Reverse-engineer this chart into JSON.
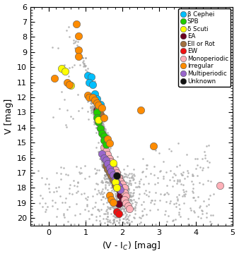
{
  "xlabel": "(V - I$_C$) [mag]",
  "ylabel": "V [mag]",
  "xlim": [
    -0.5,
    5.0
  ],
  "ylim": [
    20.5,
    6.0
  ],
  "xticks": [
    0,
    1,
    2,
    3,
    4,
    5
  ],
  "yticks": [
    6,
    7,
    8,
    9,
    10,
    11,
    12,
    13,
    14,
    15,
    16,
    17,
    18,
    19,
    20
  ],
  "legend_types": [
    {
      "label": "β Cephei",
      "color": "#00BFFF"
    },
    {
      "label": "SPB",
      "color": "#22CC00"
    },
    {
      "label": "δ Scuti",
      "color": "#FFFF00"
    },
    {
      "label": "EA",
      "color": "#6B0020"
    },
    {
      "label": "Ell or Rot",
      "color": "#A07040"
    },
    {
      "label": "EW",
      "color": "#EE1111"
    },
    {
      "label": "Monoperiodic",
      "color": "#FFB0B8"
    },
    {
      "label": "Irregular",
      "color": "#FF8C00"
    },
    {
      "label": "Multiperiodic",
      "color": "#9966CC"
    },
    {
      "label": "Unknown",
      "color": "#111111"
    }
  ],
  "bg_color": "#AAAAAA",
  "bg_size": 3.5,
  "var_size": 55,
  "var_ec": "#555555",
  "var_lw": 0.4,
  "beta_cephei": {
    "color": "#00BFFF",
    "points": [
      [
        1.05,
        10.55
      ],
      [
        1.15,
        10.65
      ],
      [
        1.1,
        11.0
      ],
      [
        1.2,
        11.15
      ],
      [
        1.25,
        11.75
      ],
      [
        1.3,
        12.1
      ],
      [
        1.4,
        12.45
      ]
    ]
  },
  "spb": {
    "color": "#22CC00",
    "points": [
      [
        1.3,
        13.0
      ],
      [
        1.3,
        13.35
      ],
      [
        1.35,
        13.65
      ],
      [
        1.4,
        14.05
      ],
      [
        1.45,
        14.4
      ],
      [
        1.5,
        14.55
      ],
      [
        1.5,
        14.85
      ],
      [
        1.55,
        15.15
      ]
    ]
  },
  "delta_scuti": {
    "color": "#FFFF00",
    "points": [
      [
        0.35,
        10.1
      ],
      [
        0.45,
        10.25
      ],
      [
        0.6,
        11.2
      ],
      [
        1.35,
        13.5
      ],
      [
        1.75,
        16.35
      ],
      [
        1.8,
        17.6
      ],
      [
        1.85,
        18.0
      ]
    ]
  },
  "ea": {
    "color": "#6B0020",
    "points": [
      [
        1.3,
        12.85
      ],
      [
        1.35,
        13.0
      ],
      [
        1.55,
        15.85
      ],
      [
        1.6,
        16.2
      ],
      [
        1.65,
        16.45
      ],
      [
        1.7,
        17.1
      ],
      [
        1.75,
        17.3
      ],
      [
        1.8,
        17.5
      ],
      [
        1.85,
        17.7
      ],
      [
        1.9,
        18.05
      ],
      [
        1.95,
        18.25
      ],
      [
        1.95,
        18.5
      ],
      [
        2.0,
        18.7
      ],
      [
        2.0,
        18.9
      ],
      [
        1.9,
        19.05
      ]
    ]
  },
  "ell_or_rot": {
    "color": "#A07040",
    "points": [
      [
        1.35,
        12.7
      ],
      [
        1.4,
        13.1
      ],
      [
        1.55,
        16.55
      ],
      [
        1.6,
        16.75
      ],
      [
        1.65,
        17.0
      ],
      [
        1.7,
        17.2
      ],
      [
        1.75,
        17.45
      ],
      [
        1.8,
        17.85
      ]
    ]
  },
  "ew": {
    "color": "#EE1111",
    "points": [
      [
        1.85,
        19.55
      ],
      [
        1.9,
        19.7
      ]
    ]
  },
  "monoperiodic": {
    "color": "#FFB0B8",
    "points": [
      [
        1.5,
        15.3
      ],
      [
        1.55,
        15.55
      ],
      [
        1.6,
        15.8
      ],
      [
        1.65,
        16.05
      ],
      [
        1.7,
        16.25
      ],
      [
        1.75,
        16.5
      ],
      [
        1.8,
        16.8
      ],
      [
        1.85,
        17.0
      ],
      [
        1.9,
        17.3
      ],
      [
        1.95,
        17.55
      ],
      [
        2.0,
        17.75
      ],
      [
        2.05,
        18.0
      ],
      [
        2.05,
        18.3
      ],
      [
        2.1,
        18.55
      ],
      [
        2.05,
        18.75
      ],
      [
        2.1,
        19.0
      ],
      [
        2.15,
        19.2
      ],
      [
        2.2,
        19.4
      ],
      [
        4.65,
        17.85
      ]
    ]
  },
  "irregular": {
    "color": "#FF8C00",
    "points": [
      [
        0.75,
        7.15
      ],
      [
        0.8,
        7.95
      ],
      [
        0.8,
        8.85
      ],
      [
        0.8,
        9.3
      ],
      [
        0.15,
        10.75
      ],
      [
        0.5,
        11.0
      ],
      [
        0.55,
        11.15
      ],
      [
        1.05,
        11.85
      ],
      [
        1.1,
        12.0
      ],
      [
        1.2,
        12.0
      ],
      [
        1.25,
        12.2
      ],
      [
        1.3,
        12.35
      ],
      [
        1.35,
        12.5
      ],
      [
        1.45,
        12.7
      ],
      [
        1.5,
        13.35
      ],
      [
        2.5,
        12.85
      ],
      [
        1.6,
        14.75
      ],
      [
        1.65,
        15.05
      ],
      [
        2.85,
        15.2
      ],
      [
        1.65,
        18.5
      ],
      [
        1.7,
        18.75
      ],
      [
        1.75,
        18.95
      ]
    ]
  },
  "multiperiodic": {
    "color": "#9966CC",
    "points": [
      [
        1.45,
        15.75
      ],
      [
        1.5,
        16.0
      ],
      [
        1.55,
        16.15
      ],
      [
        1.6,
        16.4
      ],
      [
        1.65,
        16.65
      ],
      [
        1.7,
        16.9
      ],
      [
        1.75,
        17.15
      ],
      [
        1.8,
        17.4
      ],
      [
        1.85,
        17.65
      ],
      [
        1.9,
        17.9
      ],
      [
        1.95,
        18.1
      ]
    ]
  },
  "unknown": {
    "color": "#111111",
    "points": [
      [
        1.85,
        17.2
      ]
    ]
  }
}
